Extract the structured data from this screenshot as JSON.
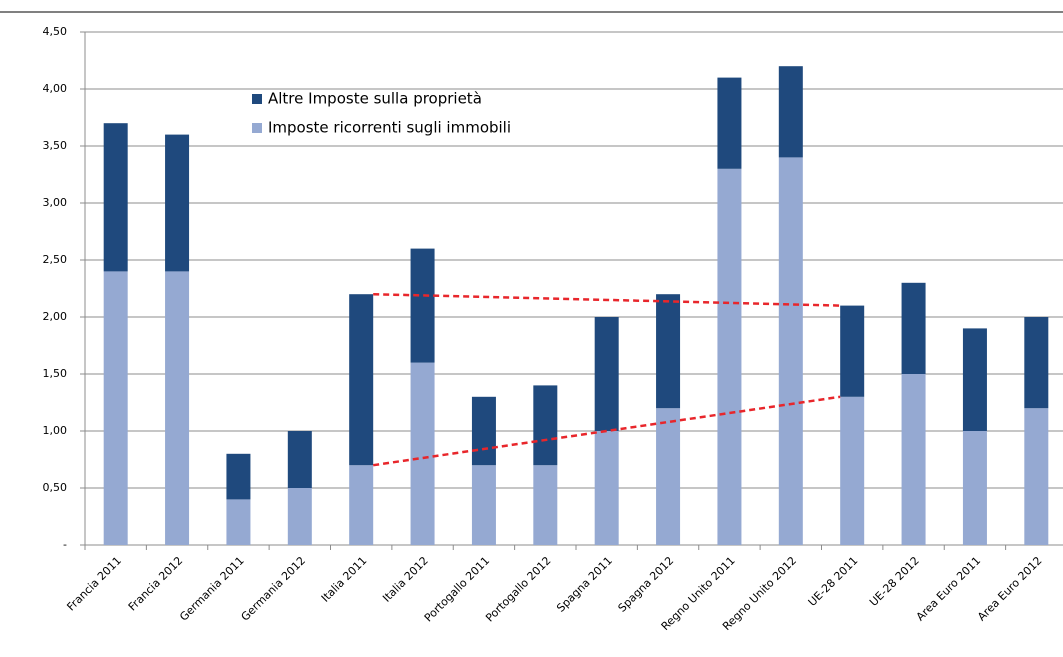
{
  "chart_data": {
    "type": "stacked_bar",
    "categories": [
      "Francia 2011",
      "Francia 2012",
      "Germania 2011",
      "Germania 2012",
      "Italia 2011",
      "Italia 2012",
      "Portogallo 2011",
      "Portogallo 2012",
      "Spagna 2011",
      "Spagna 2012",
      "Regno Unito 2011",
      "Regno Unito 2012",
      "UE-28 2011",
      "UE-28 2012",
      "Area Euro 2011",
      "Area Euro 2012"
    ],
    "series": [
      {
        "name": "Imposte ricorrenti sugli immobili",
        "color": "#95a9d2",
        "values": [
          2.4,
          2.4,
          0.4,
          0.5,
          0.7,
          1.6,
          0.7,
          0.7,
          1.0,
          1.2,
          3.3,
          3.4,
          1.3,
          1.5,
          1.0,
          1.2
        ]
      },
      {
        "name": "Altre Imposte sulla proprietà",
        "color": "#1f497d",
        "values": [
          1.3,
          1.2,
          0.4,
          0.5,
          1.5,
          1.0,
          0.6,
          0.7,
          1.0,
          1.0,
          0.8,
          0.8,
          0.8,
          0.8,
          0.9,
          0.8
        ]
      }
    ],
    "ylim": [
      0,
      4.5
    ],
    "yticks": [
      {
        "value": 0,
        "label": "-"
      },
      {
        "value": 0.5,
        "label": "0,50"
      },
      {
        "value": 1,
        "label": "1,00"
      },
      {
        "value": 1.5,
        "label": "1,50"
      },
      {
        "value": 2,
        "label": "2,00"
      },
      {
        "value": 2.5,
        "label": "2,50"
      },
      {
        "value": 3,
        "label": "3,00"
      },
      {
        "value": 3.5,
        "label": "3,50"
      },
      {
        "value": 4,
        "label": "4,00"
      },
      {
        "value": 4.5,
        "label": "4,50"
      }
    ],
    "grid": true
  }
}
